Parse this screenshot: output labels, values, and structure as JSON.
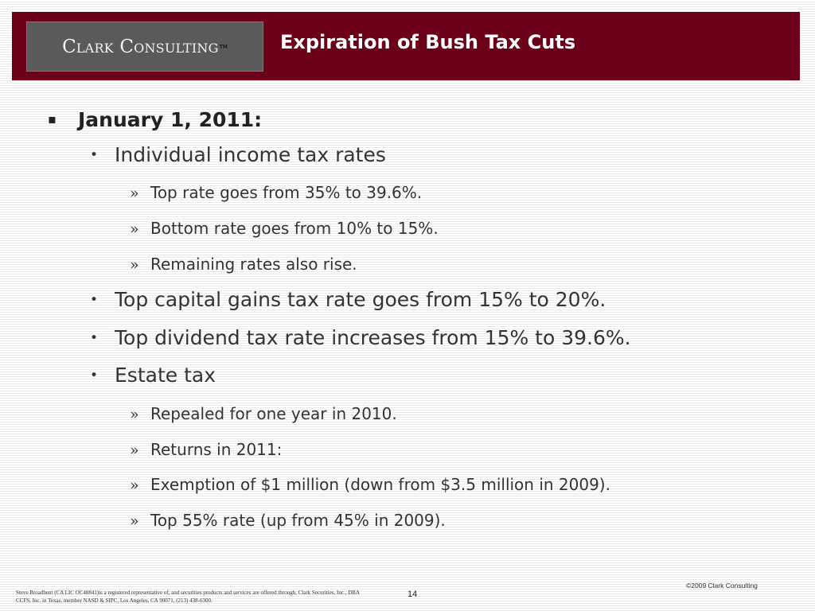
{
  "header": {
    "logo_text": "Clark Consulting",
    "logo_tm": "TM",
    "title": "Expiration of Bush Tax Cuts"
  },
  "slide": {
    "heading": {
      "marker": "▪",
      "text": "January 1, 2011:"
    },
    "items": [
      {
        "marker": "•",
        "text": "Individual income tax rates"
      },
      {
        "marker": "»",
        "text": "Top rate goes from 35% to 39.6%."
      },
      {
        "marker": "»",
        "text": "Bottom rate goes from 10% to 15%."
      },
      {
        "marker": "»",
        "text": "Remaining rates also rise."
      },
      {
        "marker": "•",
        "text": "Top capital gains tax rate goes from 15% to 20%."
      },
      {
        "marker": "•",
        "text": "Top dividend tax rate increases from 15% to 39.6%."
      },
      {
        "marker": "•",
        "text": "Estate tax"
      },
      {
        "marker": "»",
        "text": "Repealed for one year in 2010."
      },
      {
        "marker": "»",
        "text": "Returns in 2011:"
      },
      {
        "marker": "»",
        "text": "Exemption of $1 million (down from $3.5 million in 2009)."
      },
      {
        "marker": "»",
        "text": "Top 55% rate (up from 45% in 2009)."
      }
    ]
  },
  "footer": {
    "disclaimer_line1": "Steve Broadbent  (CA LIC OC48841)is a registered representative of, and securities products and services are offered through, Clark Securities, Inc., DBA",
    "disclaimer_line2": "CCFS, Inc. in Texas, member NASD & SIPC, Los Angeles, CA  90071, (213) 438-6300.",
    "page_number": "14",
    "copyright": "©2009 Clark Consulting"
  },
  "colors": {
    "header_bg": "#6d0019",
    "logo_bg": "#5a5a5a",
    "title_text": "#ffffff",
    "body_text": "#333333"
  }
}
